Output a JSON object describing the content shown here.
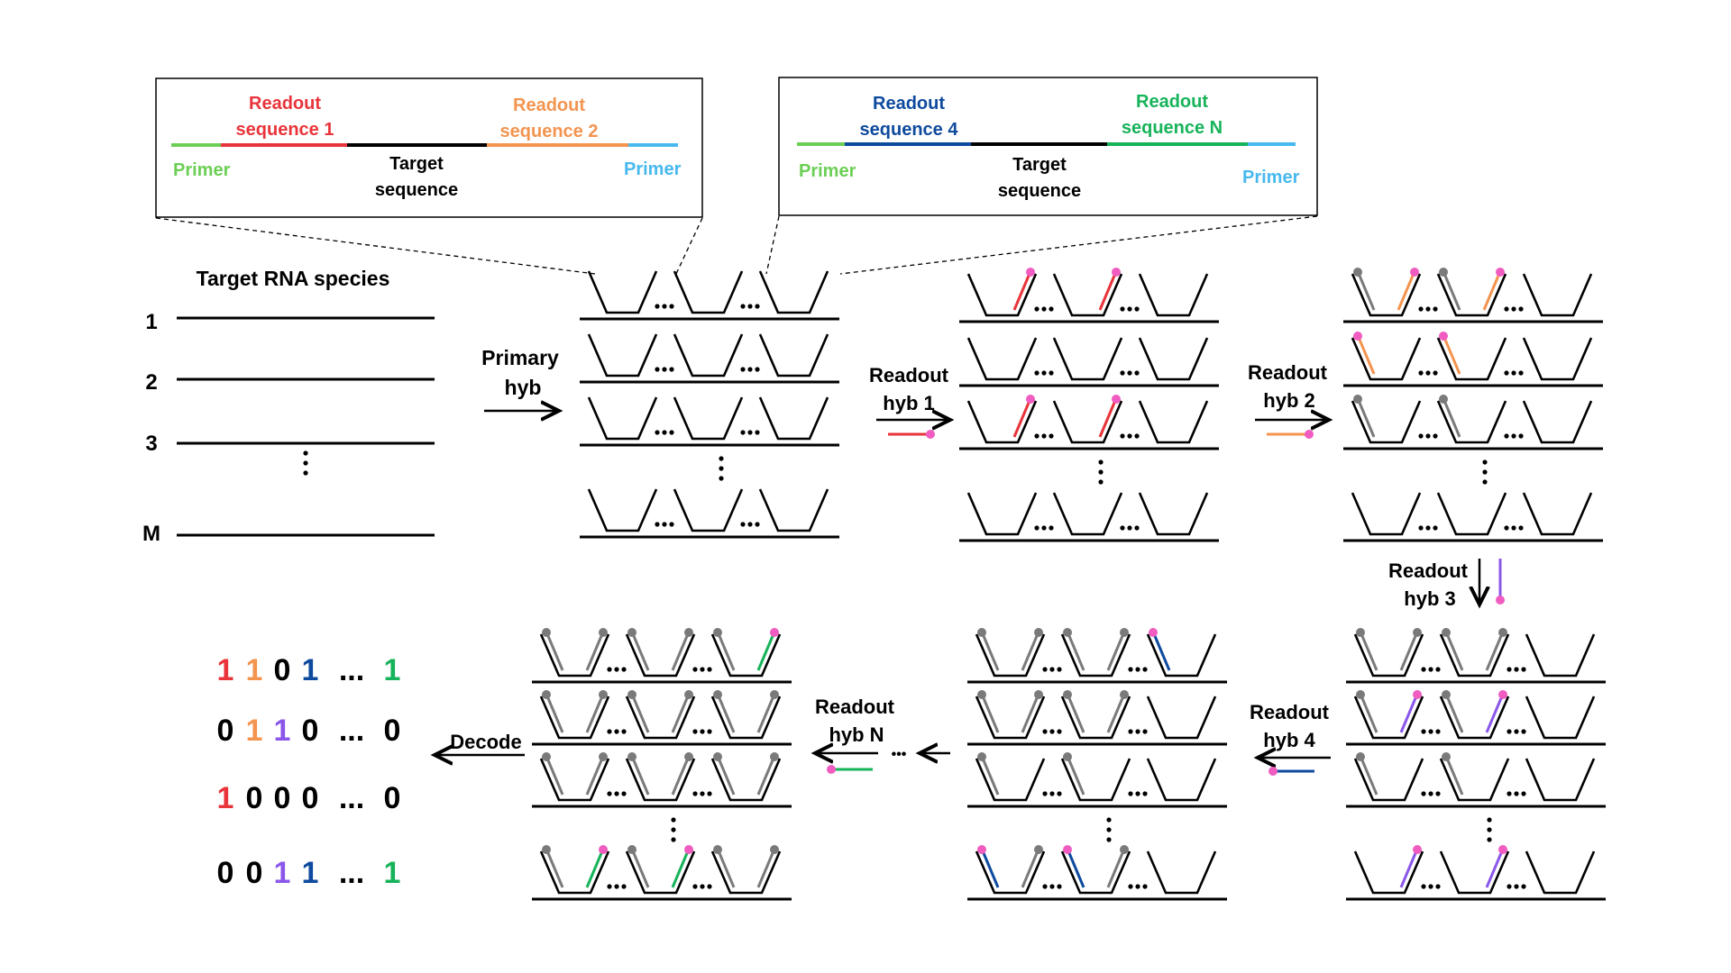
{
  "colors": {
    "ink": "#000000",
    "primer_left": "#6ccf55",
    "primer_right": "#48b9ee",
    "readout1": "#e8343a",
    "readout2": "#f3944f",
    "readout4": "#0e4a9e",
    "readoutN": "#17b35a",
    "readout3": "#8b57ea",
    "dot": "#f05cc0",
    "used": "#7a7a7a"
  },
  "callouts": [
    {
      "readout_a": [
        "Readout",
        "sequence 1"
      ],
      "readout_b": [
        "Readout",
        "sequence 2"
      ],
      "target": [
        "Target",
        "sequence"
      ],
      "primer_left": "Primer",
      "primer_right": "Primer"
    },
    {
      "readout_a": [
        "Readout",
        "sequence 4"
      ],
      "readout_b": [
        "Readout",
        "sequence N"
      ],
      "target": [
        "Target",
        "sequence"
      ],
      "primer_left": "Primer",
      "primer_right": "Primer"
    }
  ],
  "species": {
    "title": "Target RNA species",
    "labels": [
      "1",
      "2",
      "3",
      "M"
    ],
    "vdots": "⋮"
  },
  "steps": {
    "primary": [
      "Primary",
      "hyb"
    ],
    "readout1": [
      "Readout",
      "hyb 1"
    ],
    "readout2": [
      "Readout",
      "hyb 2"
    ],
    "readout3": [
      "Readout",
      "hyb 3"
    ],
    "readout4": [
      "Readout",
      "hyb 4"
    ],
    "readoutN": [
      "Readout",
      "hyb N"
    ],
    "decode": "Decode",
    "ellipsis": "•••"
  },
  "codes": [
    [
      {
        "t": "1",
        "c": "readout1"
      },
      {
        "t": "1",
        "c": "readout2"
      },
      {
        "t": "0",
        "c": "ink"
      },
      {
        "t": "1",
        "c": "readout4"
      },
      {
        "t": "...",
        "c": "ink"
      },
      {
        "t": "1",
        "c": "readoutN"
      }
    ],
    [
      {
        "t": "0",
        "c": "ink"
      },
      {
        "t": "1",
        "c": "readout2"
      },
      {
        "t": "1",
        "c": "readout3"
      },
      {
        "t": "0",
        "c": "ink"
      },
      {
        "t": "...",
        "c": "ink"
      },
      {
        "t": "0",
        "c": "ink"
      }
    ],
    [
      {
        "t": "1",
        "c": "readout1"
      },
      {
        "t": "0",
        "c": "ink"
      },
      {
        "t": "0",
        "c": "ink"
      },
      {
        "t": "0",
        "c": "ink"
      },
      {
        "t": "...",
        "c": "ink"
      },
      {
        "t": "0",
        "c": "ink"
      }
    ],
    [
      {
        "t": "0",
        "c": "ink"
      },
      {
        "t": "0",
        "c": "ink"
      },
      {
        "t": "1",
        "c": "readout3"
      },
      {
        "t": "1",
        "c": "readout4"
      },
      {
        "t": "...",
        "c": "ink"
      },
      {
        "t": "1",
        "c": "readoutN"
      }
    ]
  ],
  "panels": {
    "primary": {
      "rows": [
        [
          {},
          {},
          {}
        ],
        [
          {},
          {},
          {}
        ],
        [
          {},
          {},
          {}
        ],
        [
          {},
          {},
          {}
        ]
      ]
    },
    "hyb1": {
      "rows": [
        [
          {
            "r": "readout1"
          },
          {
            "r": "readout1"
          },
          {}
        ],
        [
          {},
          {},
          {}
        ],
        [
          {
            "r": "readout1"
          },
          {
            "r": "readout1"
          },
          {}
        ],
        [
          {},
          {},
          {}
        ]
      ]
    },
    "hyb2": {
      "rows": [
        [
          {
            "l": "used",
            "r": "readout2"
          },
          {
            "l": "used",
            "r": "readout2"
          },
          {}
        ],
        [
          {
            "l": "readout2"
          },
          {
            "l": "readout2"
          },
          {}
        ],
        [
          {
            "l": "used"
          },
          {
            "l": "used"
          },
          {}
        ],
        [
          {},
          {},
          {}
        ]
      ]
    },
    "hyb3": {
      "rows": [
        [
          {
            "l": "used",
            "r": "used"
          },
          {
            "l": "used",
            "r": "used"
          },
          {}
        ],
        [
          {
            "l": "used",
            "r": "readout3"
          },
          {
            "l": "used",
            "r": "readout3"
          },
          {}
        ],
        [
          {
            "l": "used"
          },
          {
            "l": "used"
          },
          {}
        ],
        [
          {
            "r": "readout3"
          },
          {
            "r": "readout3"
          },
          {}
        ]
      ]
    },
    "hyb4": {
      "rows": [
        [
          {
            "l": "used",
            "r": "used"
          },
          {
            "l": "used",
            "r": "used"
          },
          {
            "l": "readout4"
          }
        ],
        [
          {
            "l": "used",
            "r": "used"
          },
          {
            "l": "used",
            "r": "used"
          },
          {}
        ],
        [
          {
            "l": "used"
          },
          {
            "l": "used"
          },
          {}
        ],
        [
          {
            "l": "readout4",
            "r": "used"
          },
          {
            "l": "readout4",
            "r": "used"
          },
          {}
        ]
      ]
    },
    "hybN": {
      "rows": [
        [
          {
            "l": "used",
            "r": "used"
          },
          {
            "l": "used",
            "r": "used"
          },
          {
            "l": "used",
            "r": "readoutN"
          }
        ],
        [
          {
            "l": "used",
            "r": "used"
          },
          {
            "l": "used",
            "r": "used"
          },
          {
            "l": "used",
            "r": "used"
          }
        ],
        [
          {
            "l": "used",
            "r": "used"
          },
          {
            "l": "used",
            "r": "used"
          },
          {
            "l": "used",
            "r": "used"
          }
        ],
        [
          {
            "l": "used",
            "r": "readoutN"
          },
          {
            "l": "used",
            "r": "readoutN"
          },
          {
            "l": "used",
            "r": "used"
          }
        ]
      ]
    }
  }
}
